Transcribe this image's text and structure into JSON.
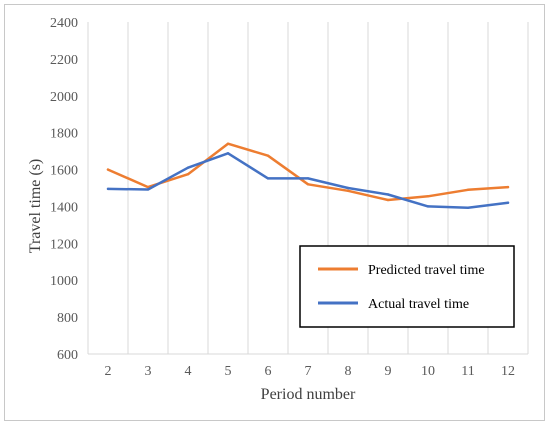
{
  "chart_data": {
    "type": "line",
    "title": "",
    "xlabel": "Period number",
    "ylabel": "Travel time (s)",
    "categories": [
      "2",
      "3",
      "4",
      "5",
      "6",
      "7",
      "8",
      "9",
      "10",
      "11",
      "12"
    ],
    "ylim": [
      600,
      2400
    ],
    "yticks": [
      600,
      800,
      1000,
      1200,
      1400,
      1600,
      1800,
      2000,
      2200,
      2400
    ],
    "grid": "vertical",
    "legend_position": "lower-right",
    "series": [
      {
        "name": "Predicted travel time",
        "color": "#ED7D31",
        "values": [
          1600,
          1505,
          1575,
          1740,
          1675,
          1520,
          1485,
          1435,
          1455,
          1490,
          1505
        ]
      },
      {
        "name": "Actual travel time",
        "color": "#4472C4",
        "values": [
          1495,
          1492,
          1610,
          1688,
          1552,
          1552,
          1500,
          1465,
          1400,
          1393,
          1420
        ]
      }
    ]
  }
}
